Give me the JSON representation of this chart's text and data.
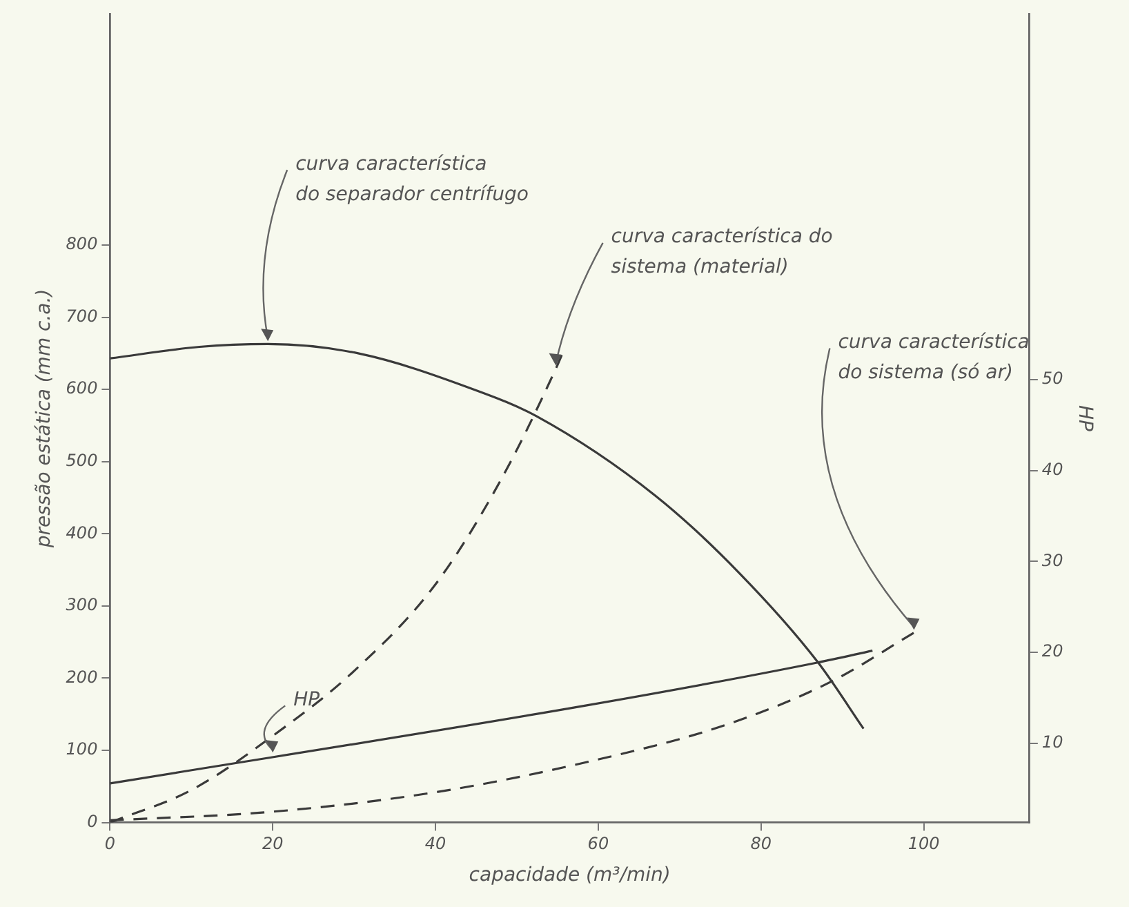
{
  "chart_data": {
    "type": "line",
    "xlabel": "capacidade (m³/min)",
    "ylabel": "pressão estática (mm c.a.)",
    "y2label": "HP",
    "xlim": [
      0,
      113
    ],
    "xticks": [
      0,
      20,
      40,
      60,
      80,
      100
    ],
    "ylim": [
      0,
      1120
    ],
    "yticks": [
      0,
      100,
      200,
      300,
      400,
      500,
      600,
      700,
      800
    ],
    "y2lim": [
      1.3,
      90.2
    ],
    "y2ticks": [
      10,
      20,
      30,
      40,
      50
    ],
    "grid": false,
    "legend": false,
    "series": [
      {
        "color": "#3a3a3a",
        "line_style": "solid",
        "x": [
          0,
          11,
          19.4,
          30.5,
          44.7,
          52.4,
          67,
          77.3,
          87,
          92.6
        ],
        "values": [
          643,
          659,
          663,
          650,
          600,
          563,
          453,
          346,
          222,
          130
        ]
      },
      {
        "color": "#3a3a3a",
        "line_style": "dashed",
        "x": [
          0,
          10,
          20,
          30,
          40,
          48.1,
          54.8,
          55.8
        ],
        "values": [
          0,
          45,
          120,
          210,
          330,
          476,
          629,
          655
        ]
      },
      {
        "color": "#3a3a3a",
        "line_style": "dashed",
        "x": [
          0,
          20,
          40,
          58.7,
          75.6,
          88.6,
          98.8
        ],
        "values": [
          3,
          15,
          42,
          84,
          135,
          195,
          263
        ]
      },
      {
        "color": "#3a3a3a",
        "line_style": "solid",
        "axis": "y2",
        "x": [
          0,
          58.7,
          87,
          93.7
        ],
        "values": [
          5.6,
          14.2,
          18.9,
          20.2
        ]
      }
    ],
    "annotations": [
      {
        "text": "curva característica\ndo separador centrífugo",
        "x": 19.4,
        "y": 663
      },
      {
        "text": "curva característica do\nsistema (material)",
        "x": 54.8,
        "y": 629
      },
      {
        "text": "curva característica\ndo sistema (só ar)",
        "x": 98.8,
        "y": 263
      },
      {
        "text": "HP",
        "x": 20,
        "y": 93
      }
    ]
  }
}
